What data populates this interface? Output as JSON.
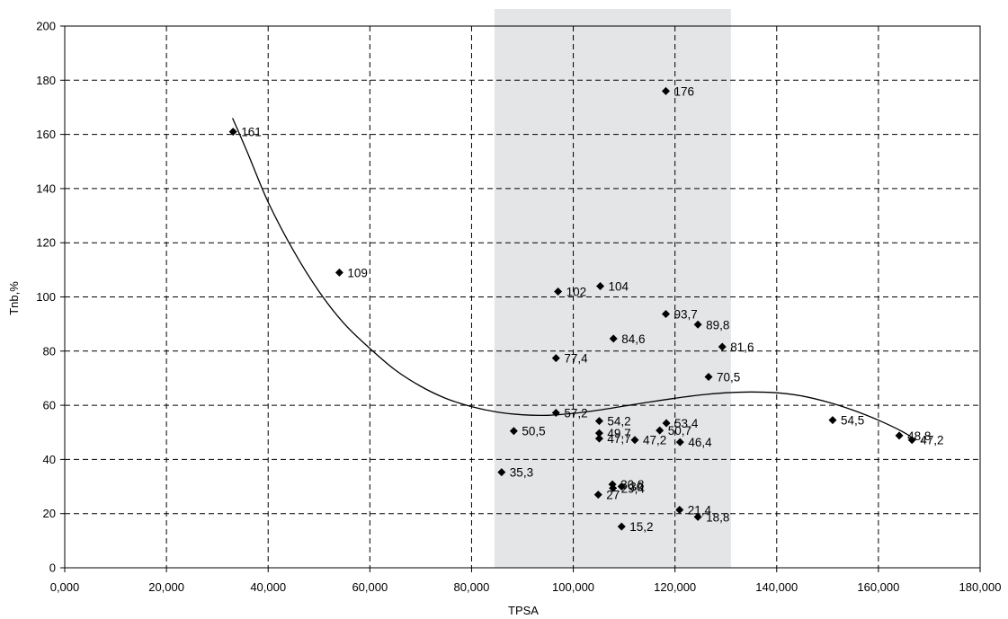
{
  "chart_data": {
    "type": "scatter",
    "xlabel": "TPSA",
    "ylabel": "Tnb,%",
    "xlim": [
      0,
      180
    ],
    "ylim": [
      0,
      200
    ],
    "x_ticks": [
      0,
      20,
      40,
      60,
      80,
      100,
      120,
      140,
      160,
      180
    ],
    "x_tick_labels": [
      "0,000",
      "20,000",
      "40,000",
      "60,000",
      "80,000",
      "100,000",
      "120,000",
      "140,000",
      "160,000",
      "180,000"
    ],
    "y_ticks": [
      0,
      20,
      40,
      60,
      80,
      100,
      120,
      140,
      160,
      180,
      200
    ],
    "y_tick_labels": [
      "0",
      "20",
      "40",
      "60",
      "80",
      "100",
      "120",
      "140",
      "160",
      "180",
      "200"
    ],
    "grid": true,
    "highlight_band_x": [
      84.5,
      131
    ],
    "colors": {
      "marker": "#000000",
      "band": "#e4e5e6",
      "grid": "#000000"
    },
    "points": [
      {
        "x": 33.1,
        "y": 161,
        "label": "161"
      },
      {
        "x": 54.0,
        "y": 109,
        "label": "109"
      },
      {
        "x": 97.0,
        "y": 102,
        "label": "102"
      },
      {
        "x": 105.3,
        "y": 104,
        "label": "104"
      },
      {
        "x": 118.2,
        "y": 176,
        "label": "176"
      },
      {
        "x": 118.2,
        "y": 93.7,
        "label": "93,7"
      },
      {
        "x": 124.5,
        "y": 89.8,
        "label": "89,8"
      },
      {
        "x": 107.9,
        "y": 84.6,
        "label": "84,6"
      },
      {
        "x": 129.3,
        "y": 81.6,
        "label": "81,6"
      },
      {
        "x": 96.6,
        "y": 77.4,
        "label": "77,4"
      },
      {
        "x": 126.6,
        "y": 70.5,
        "label": "70,5"
      },
      {
        "x": 96.6,
        "y": 57.2,
        "label": "57,2"
      },
      {
        "x": 105.1,
        "y": 54.2,
        "label": "54,2"
      },
      {
        "x": 118.3,
        "y": 53.4,
        "label": "53,4"
      },
      {
        "x": 151.0,
        "y": 54.5,
        "label": "54,5"
      },
      {
        "x": 88.3,
        "y": 50.5,
        "label": "50,5"
      },
      {
        "x": 117.0,
        "y": 50.7,
        "label": "50,7"
      },
      {
        "x": 105.1,
        "y": 49.7,
        "label": "49,7"
      },
      {
        "x": 105.1,
        "y": 47.7,
        "label": "47,7"
      },
      {
        "x": 112.1,
        "y": 47.2,
        "label": "47,2"
      },
      {
        "x": 121.0,
        "y": 46.4,
        "label": "46,4"
      },
      {
        "x": 164.1,
        "y": 48.8,
        "label": "48,8"
      },
      {
        "x": 166.6,
        "y": 47.2,
        "label": "47,2"
      },
      {
        "x": 85.9,
        "y": 35.3,
        "label": "35,3"
      },
      {
        "x": 107.7,
        "y": 30.8,
        "label": "30,8"
      },
      {
        "x": 109.5,
        "y": 30,
        "label": "30"
      },
      {
        "x": 107.8,
        "y": 29.4,
        "label": "29,4"
      },
      {
        "x": 104.9,
        "y": 27,
        "label": "27"
      },
      {
        "x": 120.9,
        "y": 21.4,
        "label": "21,4"
      },
      {
        "x": 124.5,
        "y": 18.8,
        "label": "18,8"
      },
      {
        "x": 109.5,
        "y": 15.2,
        "label": "15,2"
      }
    ],
    "trendline": {
      "type": "polynomial",
      "x": [
        33,
        36,
        40,
        45,
        50,
        55,
        60,
        65,
        70,
        75,
        80,
        85,
        90,
        95,
        100,
        105,
        110,
        115,
        120,
        125,
        130,
        135,
        140,
        145,
        150,
        155,
        160,
        165,
        167
      ],
      "y": [
        166,
        153,
        135,
        117,
        102,
        90,
        81,
        73,
        67,
        62.5,
        59.5,
        57.5,
        56.5,
        56.3,
        57,
        58.2,
        59.7,
        61.2,
        62.6,
        63.8,
        64.6,
        64.9,
        64.6,
        63.4,
        61.2,
        58.2,
        54.5,
        50,
        47.5
      ]
    }
  }
}
